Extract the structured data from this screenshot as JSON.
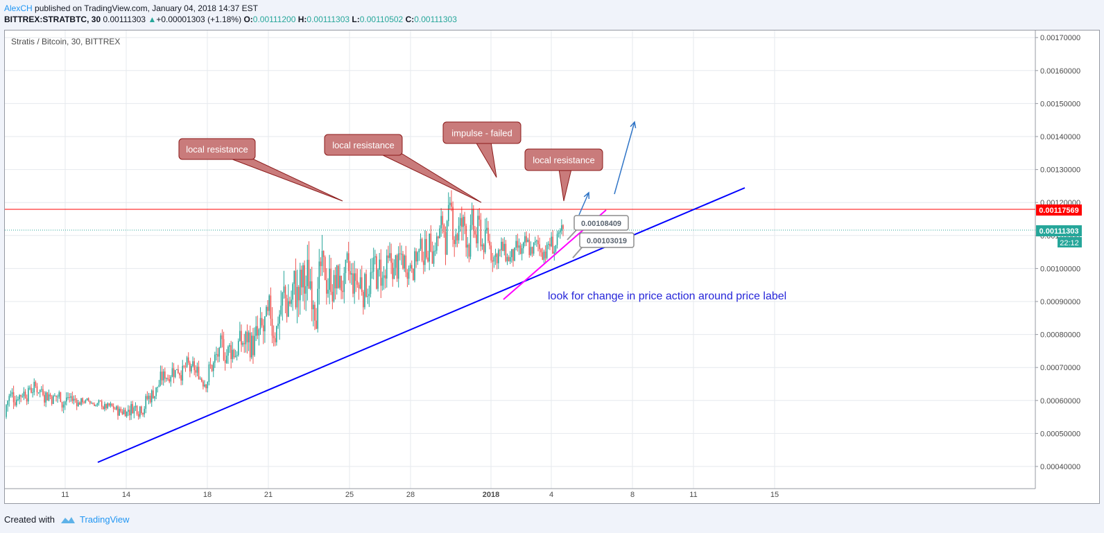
{
  "header": {
    "author": "AlexCH",
    "published": " published on TradingView.com, January 04, 2018 14:37 EST",
    "symbol": "BITTREX:STRATBTC, 30",
    "last": "0.00111303",
    "change": "+0.00001303 (+1.18%)",
    "o_label": "O:",
    "o": "0.00111200",
    "h_label": "H:",
    "h": "0.00111303",
    "l_label": "L:",
    "l": "0.00110502",
    "c_label": "C:",
    "c": "0.00111303"
  },
  "chart_title": "Stratis / Bitcoin, 30, BITTREX",
  "footer": {
    "created": "Created with",
    "brand": "TradingView"
  },
  "colors": {
    "up": "#26a69a",
    "down": "#ef5350",
    "trend": "#0000ff",
    "support2": "#ff00ff",
    "resistance": "#ff0000",
    "callout": "#c97b7b"
  },
  "chart_data": {
    "type": "candlestick",
    "y_ticks": [
      "0.00170000",
      "0.00160000",
      "0.00150000",
      "0.00140000",
      "0.00130000",
      "0.00120000",
      "0.00110000",
      "0.00100000",
      "0.00090000",
      "0.00080000",
      "0.00070000",
      "0.00060000",
      "0.00050000",
      "0.00040000"
    ],
    "y_tick_values": [
      0.0017,
      0.0016,
      0.0015,
      0.0014,
      0.0013,
      0.0012,
      0.0011,
      0.001,
      0.0009,
      0.0008,
      0.0007,
      0.0006,
      0.0005,
      0.0004
    ],
    "x_ticks": [
      "11",
      "14",
      "18",
      "21",
      "25",
      "28",
      "2018",
      "4",
      "8",
      "11",
      "15"
    ],
    "ylim": [
      0.00033,
      0.00175
    ],
    "resistance_level": "0.00117569",
    "current_price": "0.00111303",
    "countdown": "22:12",
    "price_labels": [
      "0.00108409",
      "0.00103019"
    ],
    "annotations": [
      "local resistance",
      "local resistance",
      "impulse - failed",
      "local resistance",
      "look for change in price action around price label"
    ],
    "series_path": [
      [
        0.00055,
        0.00068
      ],
      [
        0.0006,
        0.00068
      ],
      [
        0.00055,
        0.00066
      ],
      [
        0.00058,
        0.00061
      ],
      [
        0.00053,
        0.0006
      ],
      [
        0.00055,
        0.00065
      ],
      [
        0.00065,
        0.00077
      ],
      [
        0.00062,
        0.00072
      ],
      [
        0.00068,
        0.00085
      ],
      [
        0.00067,
        0.00088
      ],
      [
        0.00075,
        0.00104
      ],
      [
        0.0008,
        0.00112
      ],
      [
        0.00085,
        0.00106
      ],
      [
        0.00085,
        0.00109
      ],
      [
        0.0009,
        0.0011
      ],
      [
        0.00098,
        0.00114
      ],
      [
        0.00102,
        0.00126
      ],
      [
        0.00098,
        0.0012
      ],
      [
        0.00097,
        0.0011
      ],
      [
        0.001,
        0.00112
      ],
      [
        0.00101,
        0.00115
      ]
    ]
  }
}
